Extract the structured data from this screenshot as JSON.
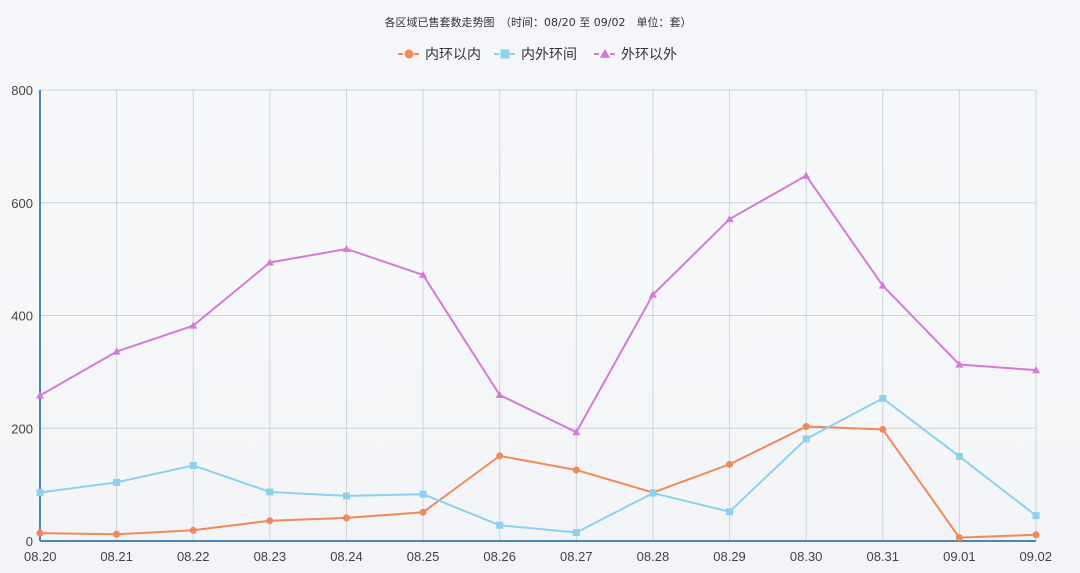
{
  "chart_data": {
    "type": "line",
    "title": "各区域已售套数走势图　（时间：08/20 至 09/02　单位：套）",
    "categories": [
      "08.20",
      "08.21",
      "08.22",
      "08.23",
      "08.24",
      "08.25",
      "08.26",
      "08.27",
      "08.28",
      "08.29",
      "08.30",
      "08.31",
      "09.01",
      "09.02"
    ],
    "ylim": [
      0,
      800
    ],
    "yticks": [
      0,
      200,
      400,
      600,
      800
    ],
    "grid": true,
    "legend_position": "top-center",
    "series": [
      {
        "name": "内环以内",
        "color": "#f08a5a",
        "marker": "circle",
        "values": [
          14,
          12,
          19,
          36,
          41,
          51,
          151,
          126,
          86,
          136,
          203,
          198,
          6,
          11
        ]
      },
      {
        "name": "内外环间",
        "color": "#8fd0ef",
        "marker": "square",
        "values": [
          86,
          104,
          134,
          87,
          80,
          83,
          28,
          15,
          85,
          52,
          181,
          253,
          150,
          45
        ]
      },
      {
        "name": "外环以外",
        "color": "#d57ad9",
        "marker": "triangle",
        "values": [
          258,
          336,
          382,
          494,
          518,
          472,
          259,
          193,
          437,
          571,
          648,
          453,
          313,
          303
        ]
      }
    ]
  }
}
